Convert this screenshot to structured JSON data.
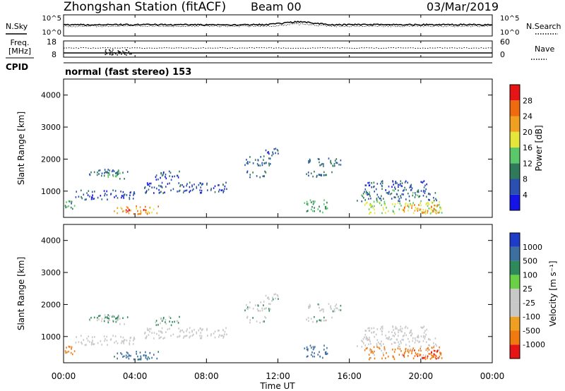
{
  "header": {
    "station": "Zhongshan Station (fitACF)",
    "beam": "Beam 00",
    "date": "03/Mar/2019"
  },
  "top_panels": {
    "nsky_label": "N.Sky",
    "nsearch_label": "N.Search",
    "noise_ticks": [
      "10^5",
      "10^0"
    ],
    "freq_label_line1": "Freq.",
    "freq_label_line2": "[MHz]",
    "freq_ticks": [
      "18",
      "8"
    ],
    "nave_label": "Nave",
    "nave_ticks": [
      "60",
      "0"
    ],
    "cpid_label": "CPID",
    "cpid_text": "normal (fast stereo) 153"
  },
  "axes": {
    "ylabel": "Slant Range [km]",
    "xlabel": "Time UT",
    "yticks": [
      "1000",
      "2000",
      "3000",
      "4000"
    ],
    "xticks": [
      "00:00",
      "04:00",
      "08:00",
      "12:00",
      "16:00",
      "20:00",
      "00:00"
    ]
  },
  "colorbars": {
    "power_label": "Power [dB]",
    "power_ticks": [
      "4",
      "8",
      "12",
      "16",
      "20",
      "24",
      "28"
    ],
    "power_colors": [
      "#1414e6",
      "#2a4fb0",
      "#2f7a5a",
      "#5ac86a",
      "#e6e63a",
      "#f0a020",
      "#f06a10",
      "#e61414"
    ],
    "velocity_label": "Velocity [m s⁻¹]",
    "velocity_ticks": [
      "1000",
      "500",
      "100",
      "25",
      "-25",
      "-100",
      "-500",
      "-1000"
    ],
    "velocity_colors": [
      "#1e3cc8",
      "#3c6ea0",
      "#2e8a5a",
      "#6ad046",
      "#c8c8c8",
      "#c8c8c8",
      "#f0a020",
      "#f07a10",
      "#e61414"
    ]
  },
  "chart_data": {
    "type": "heatmap",
    "title": "Zhongshan Station (fitACF) Beam 00 03/Mar/2019",
    "xlabel": "Time UT",
    "ylabel": "Slant Range [km]",
    "xlim": [
      0,
      24
    ],
    "ylim": [
      180,
      4500
    ],
    "xtick_values": [
      0,
      4,
      8,
      12,
      16,
      20,
      24
    ],
    "ytick_values": [
      1000,
      2000,
      3000,
      4000
    ],
    "panels": [
      "Power [dB]",
      "Velocity [m s⁻¹]"
    ],
    "scatter_regions": [
      {
        "t0": 0.0,
        "t1": 0.6,
        "r0": 350,
        "r1": 700,
        "power": 10,
        "velocity": -300
      },
      {
        "t0": 1.2,
        "t1": 3.8,
        "r0": 1450,
        "r1": 1650,
        "power": 8,
        "velocity": 30
      },
      {
        "t0": 2.2,
        "t1": 3.4,
        "r0": 1350,
        "r1": 1600,
        "power": 12,
        "velocity": 20
      },
      {
        "t0": 0.6,
        "t1": 4.0,
        "r0": 700,
        "r1": 1000,
        "power": 6,
        "velocity": -40
      },
      {
        "t0": 2.8,
        "t1": 5.3,
        "r0": 250,
        "r1": 500,
        "power": 22,
        "velocity": 150
      },
      {
        "t0": 3.3,
        "t1": 4.6,
        "r0": 300,
        "r1": 420,
        "power": 28,
        "velocity": 200
      },
      {
        "t0": 4.5,
        "t1": 9.2,
        "r0": 900,
        "r1": 1250,
        "power": 6,
        "velocity": -40
      },
      {
        "t0": 5.0,
        "t1": 6.5,
        "r0": 1300,
        "r1": 1600,
        "power": 6,
        "velocity": 30
      },
      {
        "t0": 10.0,
        "t1": 11.6,
        "r0": 1750,
        "r1": 2050,
        "power": 8,
        "velocity": 10
      },
      {
        "t0": 10.2,
        "t1": 11.4,
        "r0": 1400,
        "r1": 1600,
        "power": 8,
        "velocity": 10
      },
      {
        "t0": 11.0,
        "t1": 12.0,
        "r0": 2050,
        "r1": 2300,
        "power": 7,
        "velocity": 0
      },
      {
        "t0": 13.5,
        "t1": 15.6,
        "r0": 1750,
        "r1": 2000,
        "power": 8,
        "velocity": 10
      },
      {
        "t0": 13.4,
        "t1": 15.0,
        "r0": 1400,
        "r1": 1600,
        "power": 8,
        "velocity": 10
      },
      {
        "t0": 13.4,
        "t1": 14.8,
        "r0": 300,
        "r1": 700,
        "power": 12,
        "velocity": 200
      },
      {
        "t0": 16.8,
        "t1": 20.4,
        "r0": 1000,
        "r1": 1300,
        "power": 6,
        "velocity": -15
      },
      {
        "t0": 16.4,
        "t1": 20.9,
        "r0": 650,
        "r1": 1000,
        "power": 9,
        "velocity": -20
      },
      {
        "t0": 16.8,
        "t1": 21.2,
        "r0": 250,
        "r1": 650,
        "power": 16,
        "velocity": -150
      },
      {
        "t0": 19.0,
        "t1": 21.0,
        "r0": 250,
        "r1": 550,
        "power": 24,
        "velocity": -500
      }
    ]
  }
}
